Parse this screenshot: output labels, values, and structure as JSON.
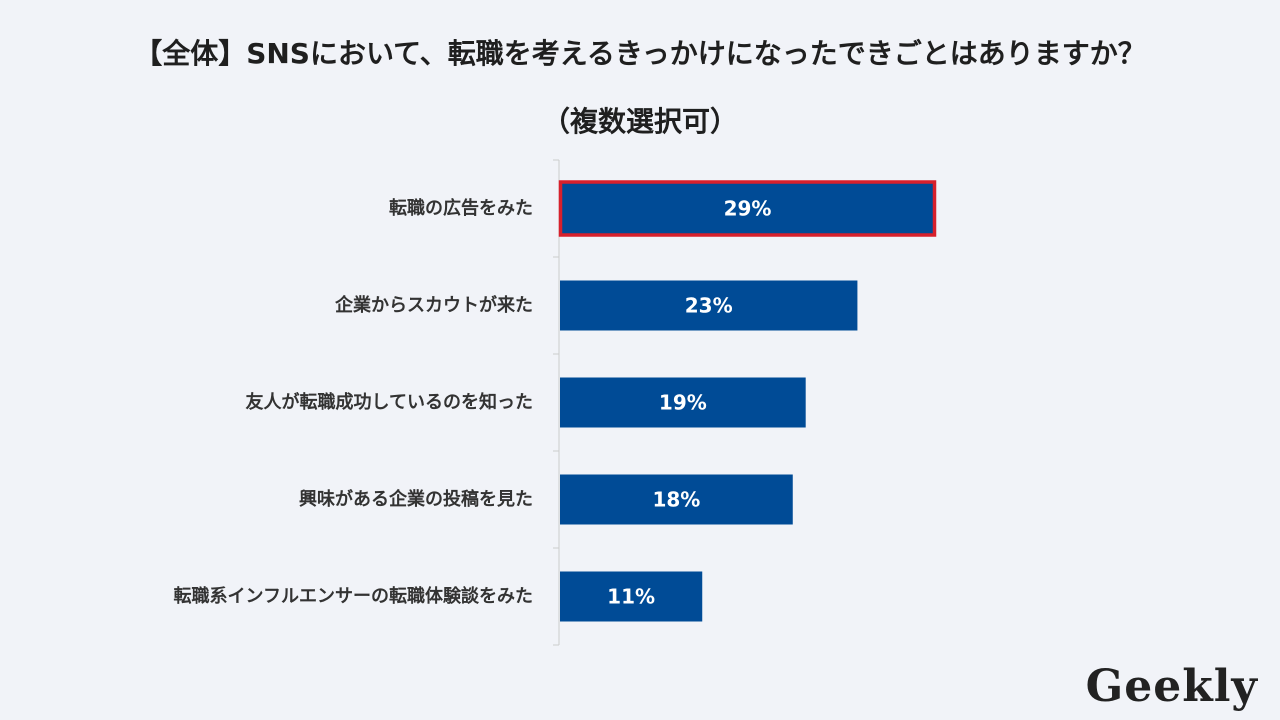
{
  "chart_data": {
    "type": "bar",
    "orientation": "horizontal",
    "title": "【全体】SNSにおいて、転職を考えるきっかけになったできごとはありますか？",
    "subtitle": "（複数選択可）",
    "categories": [
      "転職の広告をみた",
      "企業からスカウトが来た",
      "友人が転職成功しているのを知った",
      "興味がある企業の投稿を見た",
      "転職系インフルエンサーの転職体験談をみた"
    ],
    "values": [
      29,
      23,
      19,
      18,
      11
    ],
    "value_labels": [
      "29%",
      "23%",
      "19%",
      "18%",
      "11%"
    ],
    "unit": "%",
    "highlight_index": 0,
    "grid": false,
    "legend": "none"
  },
  "colors": {
    "bar": "#004b96",
    "highlight_border": "#d7202c",
    "axis": "#cccccc",
    "background": "#f1f3f8",
    "bar_label": "#ffffff",
    "category_label": "#333333"
  },
  "logo": {
    "text": "Geekly"
  }
}
